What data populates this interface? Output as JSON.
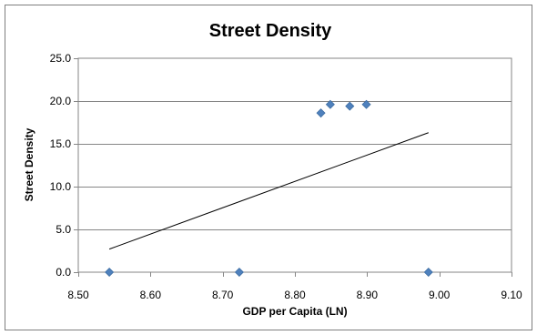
{
  "chart_data": {
    "type": "scatter",
    "title": "Street Density",
    "xlabel": "GDP per Capita (LN)",
    "ylabel": "Street Density",
    "xlim": [
      8.5,
      9.1
    ],
    "ylim": [
      0,
      25
    ],
    "x_ticks": [
      "8.50",
      "8.60",
      "8.70",
      "8.80",
      "8.90",
      "9.00",
      "9.10"
    ],
    "y_ticks": [
      "0.0",
      "5.0",
      "10.0",
      "15.0",
      "20.0",
      "25.0"
    ],
    "grid": "horizontal",
    "legend": "none",
    "marker_color": "#4F81BD",
    "points": [
      {
        "x": 8.543,
        "y": 0.0
      },
      {
        "x": 8.723,
        "y": 0.0
      },
      {
        "x": 8.836,
        "y": 18.6
      },
      {
        "x": 8.849,
        "y": 19.6
      },
      {
        "x": 8.876,
        "y": 19.4
      },
      {
        "x": 8.899,
        "y": 19.6
      },
      {
        "x": 8.985,
        "y": 0.0
      }
    ],
    "trendline": {
      "x": [
        8.543,
        8.985
      ],
      "y": [
        2.7,
        16.3
      ],
      "color": "#000000"
    }
  }
}
